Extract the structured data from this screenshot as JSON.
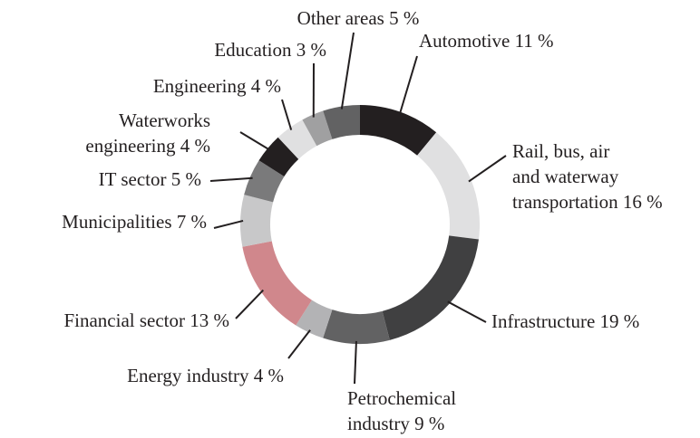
{
  "chart_data": {
    "type": "donut",
    "categories": [
      "Automotive",
      "Rail, bus, air and waterway transportation",
      "Infrastructure",
      "Petrochemical industry",
      "Energy industry",
      "Financial sector",
      "Municipalities",
      "IT sector",
      "Waterworks engineering",
      "Engineering",
      "Education",
      "Other areas"
    ],
    "values": [
      11,
      16,
      19,
      9,
      4,
      13,
      7,
      5,
      4,
      4,
      3,
      5
    ],
    "value_labels": [
      "11 %",
      "16 %",
      "19 %",
      "9 %",
      "4 %",
      "13 %",
      "7 %",
      "5 %",
      "4 %",
      "4 %",
      "3 %",
      "5 %"
    ],
    "colors": [
      "#231f20",
      "#e0e0e1",
      "#404041",
      "#626263",
      "#b3b3b5",
      "#d0878c",
      "#c8c8c9",
      "#7a7a7b",
      "#231f20",
      "#e0e0e1",
      "#a0a0a1",
      "#626263"
    ]
  }
}
